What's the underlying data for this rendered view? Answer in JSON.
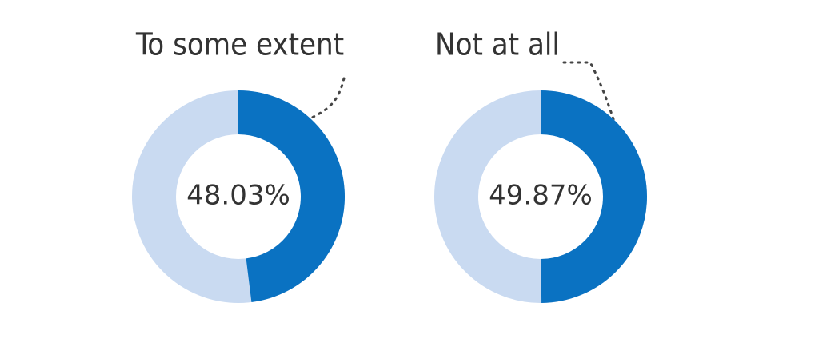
{
  "chart_data": [
    {
      "type": "donut",
      "title": "To some extent",
      "values": [
        48.03
      ],
      "value_labels": [
        "48.03%"
      ],
      "color": "#0a72c2",
      "track_color": "#c9daf1"
    },
    {
      "type": "donut",
      "title": "Not at all",
      "values": [
        49.87
      ],
      "value_labels": [
        "49.87%"
      ],
      "color": "#0a72c2",
      "track_color": "#c9daf1"
    }
  ]
}
